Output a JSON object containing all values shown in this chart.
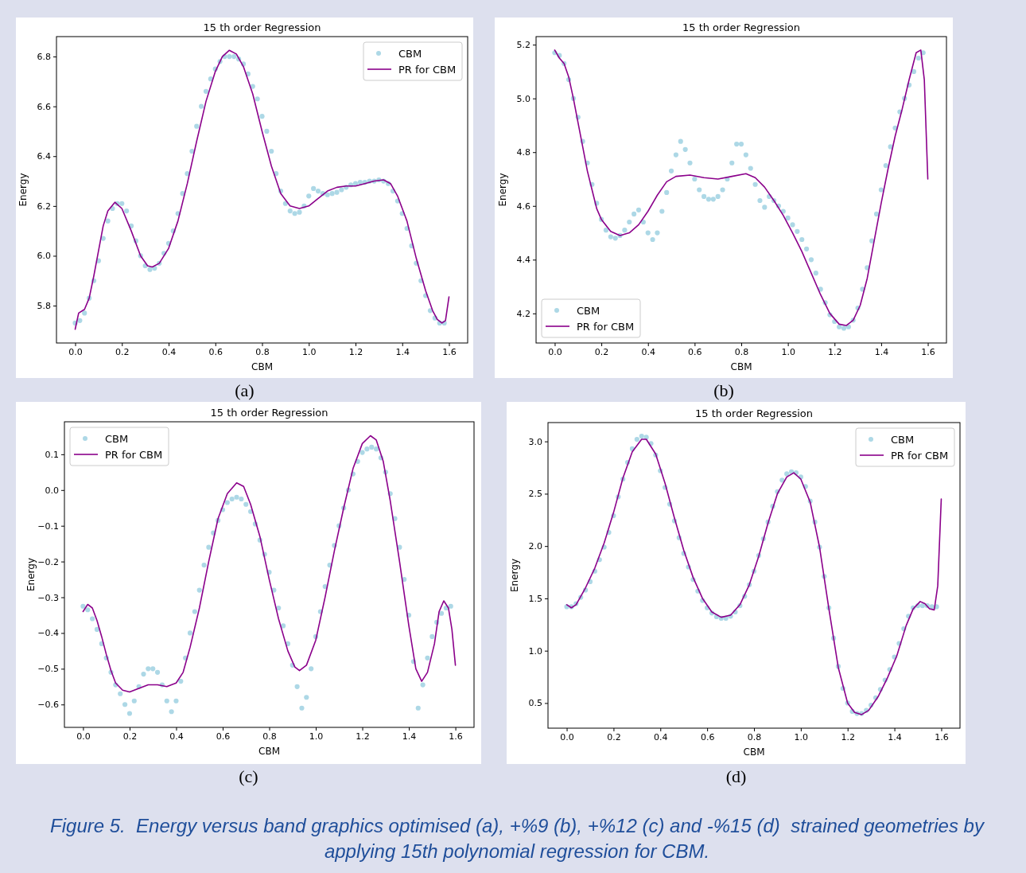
{
  "chart_data": [
    {
      "type": "line",
      "title": "15 th order Regression",
      "xlabel": "CBM",
      "ylabel": "Energy",
      "annotations": [
        "(a)",
        "Figure 5.  Energy versus band graphics optimised (a), +%9 (b), +%12 (c) and -%15 (d)  strained geometries by applying 15th polynomial regression for CBM."
      ],
      "legend": "top right",
      "grid": false,
      "xlim": [
        -0.08,
        1.68
      ],
      "xticks": [
        {
          "value": 0,
          "label": "0.0"
        },
        {
          "value": 0.2,
          "label": "0.2"
        },
        {
          "value": 0.4,
          "label": "0.4"
        },
        {
          "value": 0.6,
          "label": "0.6"
        },
        {
          "value": 0.8,
          "label": "0.8"
        },
        {
          "value": 1,
          "label": "1.0"
        },
        {
          "value": 1.2,
          "label": "1.2"
        },
        {
          "value": 1.4,
          "label": "1.4"
        },
        {
          "value": 1.6,
          "label": "1.6"
        }
      ],
      "ylim": [
        5.65,
        6.88
      ],
      "yticks": [
        5.8,
        {
          "value": 6,
          "label": "6.0"
        },
        6.2,
        6.4,
        6.6,
        6.8
      ],
      "series": [
        {
          "name": "CBM",
          "type": "scatter",
          "marker": "circle",
          "color": "#add8e6",
          "x": [
            0,
            0.02,
            0.04,
            0.06,
            0.08,
            0.1,
            0.12,
            0.14,
            0.16,
            0.18,
            0.2,
            0.22,
            0.24,
            0.26,
            0.28,
            0.3,
            0.32,
            0.34,
            0.36,
            0.38,
            0.4,
            0.42,
            0.44,
            0.46,
            0.48,
            0.5,
            0.52,
            0.54,
            0.56,
            0.58,
            0.6,
            0.62,
            0.64,
            0.66,
            0.68,
            0.7,
            0.72,
            0.74,
            0.76,
            0.78,
            0.8,
            0.82,
            0.84,
            0.86,
            0.88,
            0.9,
            0.92,
            0.94,
            0.96,
            0.98,
            1,
            1.02,
            1.04,
            1.06,
            1.08,
            1.1,
            1.12,
            1.14,
            1.16,
            1.18,
            1.2,
            1.22,
            1.24,
            1.26,
            1.28,
            1.3,
            1.32,
            1.34,
            1.36,
            1.38,
            1.4,
            1.42,
            1.44,
            1.46,
            1.48,
            1.5,
            1.52,
            1.54,
            1.56,
            1.58
          ],
          "values": [
            5.73,
            5.74,
            5.77,
            5.83,
            5.9,
            5.98,
            6.07,
            6.14,
            6.19,
            6.21,
            6.21,
            6.18,
            6.12,
            6.06,
            6,
            5.96,
            5.945,
            5.95,
            5.97,
            6.01,
            6.05,
            6.1,
            6.17,
            6.25,
            6.33,
            6.42,
            6.52,
            6.6,
            6.66,
            6.71,
            6.75,
            6.78,
            6.8,
            6.8,
            6.8,
            6.79,
            6.77,
            6.73,
            6.68,
            6.63,
            6.56,
            6.5,
            6.42,
            6.33,
            6.26,
            6.21,
            6.18,
            6.17,
            6.175,
            6.2,
            6.24,
            6.27,
            6.26,
            6.25,
            6.245,
            6.25,
            6.255,
            6.265,
            6.275,
            6.285,
            6.29,
            6.295,
            6.295,
            6.3,
            6.3,
            6.305,
            6.3,
            6.29,
            6.26,
            6.22,
            6.17,
            6.11,
            6.04,
            5.97,
            5.9,
            5.84,
            5.78,
            5.75,
            5.73,
            5.73
          ]
        },
        {
          "name": "PR for CBM",
          "type": "line",
          "color": "#8b008b",
          "x": [
            0,
            0.015,
            0.04,
            0.06,
            0.08,
            0.1,
            0.12,
            0.14,
            0.17,
            0.2,
            0.24,
            0.28,
            0.31,
            0.33,
            0.36,
            0.4,
            0.44,
            0.48,
            0.52,
            0.56,
            0.6,
            0.63,
            0.66,
            0.69,
            0.72,
            0.76,
            0.8,
            0.84,
            0.88,
            0.92,
            0.96,
            1,
            1.04,
            1.08,
            1.12,
            1.16,
            1.2,
            1.24,
            1.28,
            1.32,
            1.35,
            1.38,
            1.42,
            1.46,
            1.5,
            1.53,
            1.55,
            1.57,
            1.585,
            1.6
          ],
          "values": [
            5.705,
            5.77,
            5.785,
            5.83,
            5.92,
            6.02,
            6.12,
            6.18,
            6.215,
            6.19,
            6.1,
            6,
            5.96,
            5.955,
            5.97,
            6.03,
            6.14,
            6.29,
            6.46,
            6.62,
            6.74,
            6.8,
            6.825,
            6.81,
            6.76,
            6.65,
            6.5,
            6.36,
            6.25,
            6.2,
            6.19,
            6.2,
            6.23,
            6.26,
            6.275,
            6.28,
            6.28,
            6.29,
            6.3,
            6.305,
            6.29,
            6.24,
            6.14,
            5.99,
            5.86,
            5.78,
            5.745,
            5.73,
            5.74,
            5.835
          ]
        }
      ]
    },
    {
      "type": "line",
      "title": "15 th order Regression",
      "xlabel": "CBM",
      "ylabel": "Energy",
      "annotations": [
        "(b)"
      ],
      "legend": "bottom left",
      "grid": false,
      "xlim": [
        -0.08,
        1.68
      ],
      "xticks": [
        {
          "value": 0,
          "label": "0.0"
        },
        {
          "value": 0.2,
          "label": "0.2"
        },
        {
          "value": 0.4,
          "label": "0.4"
        },
        {
          "value": 0.6,
          "label": "0.6"
        },
        {
          "value": 0.8,
          "label": "0.8"
        },
        {
          "value": 1,
          "label": "1.0"
        },
        {
          "value": 1.2,
          "label": "1.2"
        },
        {
          "value": 1.4,
          "label": "1.4"
        },
        {
          "value": 1.6,
          "label": "1.6"
        }
      ],
      "ylim": [
        4.09,
        5.23
      ],
      "yticks": [
        4.2,
        4.4,
        4.6,
        4.8,
        {
          "value": 5,
          "label": "5.0"
        },
        5.2
      ],
      "series": [
        {
          "name": "CBM",
          "type": "scatter",
          "marker": "circle",
          "color": "#add8e6",
          "x": [
            0,
            0.02,
            0.04,
            0.06,
            0.08,
            0.1,
            0.12,
            0.14,
            0.16,
            0.18,
            0.2,
            0.22,
            0.24,
            0.26,
            0.28,
            0.3,
            0.32,
            0.34,
            0.36,
            0.38,
            0.4,
            0.42,
            0.44,
            0.46,
            0.48,
            0.5,
            0.52,
            0.54,
            0.56,
            0.58,
            0.6,
            0.62,
            0.64,
            0.66,
            0.68,
            0.7,
            0.72,
            0.74,
            0.76,
            0.78,
            0.8,
            0.82,
            0.84,
            0.86,
            0.88,
            0.9,
            0.92,
            0.94,
            0.96,
            0.98,
            1,
            1.02,
            1.04,
            1.06,
            1.08,
            1.1,
            1.12,
            1.14,
            1.16,
            1.18,
            1.2,
            1.22,
            1.24,
            1.26,
            1.28,
            1.3,
            1.32,
            1.34,
            1.36,
            1.38,
            1.4,
            1.42,
            1.44,
            1.46,
            1.48,
            1.5,
            1.52,
            1.54,
            1.56,
            1.58
          ],
          "values": [
            5.17,
            5.16,
            5.13,
            5.07,
            5,
            4.93,
            4.84,
            4.76,
            4.68,
            4.61,
            4.55,
            4.51,
            4.485,
            4.48,
            4.49,
            4.51,
            4.54,
            4.57,
            4.585,
            4.54,
            4.5,
            4.475,
            4.5,
            4.58,
            4.65,
            4.73,
            4.79,
            4.84,
            4.81,
            4.76,
            4.7,
            4.66,
            4.635,
            4.625,
            4.625,
            4.635,
            4.66,
            4.7,
            4.76,
            4.83,
            4.83,
            4.79,
            4.74,
            4.68,
            4.62,
            4.595,
            4.635,
            4.62,
            4.6,
            4.58,
            4.555,
            4.53,
            4.505,
            4.475,
            4.44,
            4.4,
            4.35,
            4.29,
            4.24,
            4.195,
            4.17,
            4.15,
            4.145,
            4.15,
            4.175,
            4.22,
            4.29,
            4.37,
            4.47,
            4.57,
            4.66,
            4.75,
            4.82,
            4.89,
            4.95,
            5,
            5.05,
            5.1,
            5.15,
            5.17
          ]
        },
        {
          "name": "PR for CBM",
          "type": "line",
          "color": "#8b008b",
          "x": [
            0,
            0.02,
            0.04,
            0.06,
            0.08,
            0.1,
            0.12,
            0.14,
            0.16,
            0.18,
            0.2,
            0.24,
            0.28,
            0.32,
            0.36,
            0.4,
            0.44,
            0.48,
            0.52,
            0.58,
            0.64,
            0.7,
            0.76,
            0.82,
            0.86,
            0.9,
            0.94,
            0.98,
            1.02,
            1.06,
            1.1,
            1.14,
            1.18,
            1.22,
            1.25,
            1.28,
            1.31,
            1.34,
            1.37,
            1.4,
            1.43,
            1.46,
            1.49,
            1.52,
            1.55,
            1.57,
            1.585,
            1.6
          ],
          "values": [
            5.18,
            5.15,
            5.13,
            5.08,
            5,
            4.91,
            4.82,
            4.73,
            4.66,
            4.59,
            4.55,
            4.505,
            4.49,
            4.5,
            4.53,
            4.58,
            4.64,
            4.69,
            4.71,
            4.715,
            4.705,
            4.7,
            4.71,
            4.72,
            4.705,
            4.67,
            4.62,
            4.565,
            4.5,
            4.43,
            4.35,
            4.27,
            4.2,
            4.16,
            4.155,
            4.175,
            4.23,
            4.33,
            4.47,
            4.61,
            4.74,
            4.86,
            4.96,
            5.07,
            5.17,
            5.18,
            5.07,
            4.7
          ]
        }
      ]
    },
    {
      "type": "line",
      "title": "15 th order Regression",
      "xlabel": "CBM",
      "ylabel": "Energy",
      "annotations": [
        "(c)"
      ],
      "legend": "top left",
      "grid": false,
      "xlim": [
        -0.08,
        1.68
      ],
      "xticks": [
        {
          "value": 0,
          "label": "0.0"
        },
        {
          "value": 0.2,
          "label": "0.2"
        },
        {
          "value": 0.4,
          "label": "0.4"
        },
        {
          "value": 0.6,
          "label": "0.6"
        },
        {
          "value": 0.8,
          "label": "0.8"
        },
        {
          "value": 1,
          "label": "1.0"
        },
        {
          "value": 1.2,
          "label": "1.2"
        },
        {
          "value": 1.4,
          "label": "1.4"
        },
        {
          "value": 1.6,
          "label": "1.6"
        }
      ],
      "ylim": [
        -0.664,
        0.191
      ],
      "yticks": [
        {
          "value": -0.6,
          "label": "−0.6"
        },
        {
          "value": -0.5,
          "label": "−0.5"
        },
        {
          "value": -0.4,
          "label": "−0.4"
        },
        {
          "value": -0.3,
          "label": "−0.3"
        },
        {
          "value": -0.2,
          "label": "−0.2"
        },
        {
          "value": -0.1,
          "label": "−0.1"
        },
        {
          "value": 0,
          "label": "0.0"
        },
        0.1
      ],
      "series": [
        {
          "name": "CBM",
          "type": "scatter",
          "marker": "circle",
          "color": "#add8e6",
          "x": [
            0,
            0.02,
            0.04,
            0.06,
            0.08,
            0.1,
            0.12,
            0.14,
            0.16,
            0.18,
            0.2,
            0.22,
            0.24,
            0.26,
            0.28,
            0.3,
            0.32,
            0.34,
            0.36,
            0.38,
            0.4,
            0.42,
            0.44,
            0.46,
            0.48,
            0.5,
            0.52,
            0.54,
            0.56,
            0.58,
            0.6,
            0.62,
            0.64,
            0.66,
            0.68,
            0.7,
            0.72,
            0.74,
            0.76,
            0.78,
            0.8,
            0.82,
            0.84,
            0.86,
            0.88,
            0.9,
            0.92,
            0.94,
            0.96,
            0.98,
            1,
            1.02,
            1.04,
            1.06,
            1.08,
            1.1,
            1.12,
            1.14,
            1.16,
            1.18,
            1.2,
            1.22,
            1.24,
            1.26,
            1.28,
            1.3,
            1.32,
            1.34,
            1.36,
            1.38,
            1.4,
            1.42,
            1.44,
            1.46,
            1.48,
            1.5,
            1.52,
            1.54,
            1.56,
            1.58
          ],
          "values": [
            -0.325,
            -0.335,
            -0.36,
            -0.39,
            -0.43,
            -0.47,
            -0.51,
            -0.545,
            -0.57,
            -0.6,
            -0.625,
            -0.59,
            -0.55,
            -0.515,
            -0.5,
            -0.5,
            -0.51,
            -0.545,
            -0.59,
            -0.62,
            -0.59,
            -0.535,
            -0.47,
            -0.4,
            -0.34,
            -0.28,
            -0.21,
            -0.16,
            -0.12,
            -0.085,
            -0.055,
            -0.035,
            -0.025,
            -0.02,
            -0.025,
            -0.04,
            -0.06,
            -0.095,
            -0.14,
            -0.18,
            -0.23,
            -0.28,
            -0.33,
            -0.38,
            -0.43,
            -0.49,
            -0.55,
            -0.61,
            -0.58,
            -0.5,
            -0.41,
            -0.34,
            -0.27,
            -0.21,
            -0.155,
            -0.1,
            -0.05,
            0,
            0.045,
            0.08,
            0.105,
            0.115,
            0.12,
            0.115,
            0.09,
            0.05,
            -0.01,
            -0.08,
            -0.16,
            -0.25,
            -0.35,
            -0.48,
            -0.61,
            -0.545,
            -0.47,
            -0.41,
            -0.37,
            -0.345,
            -0.33,
            -0.325
          ]
        },
        {
          "name": "PR for CBM",
          "type": "line",
          "color": "#8b008b",
          "x": [
            0,
            0.02,
            0.04,
            0.06,
            0.08,
            0.1,
            0.12,
            0.14,
            0.17,
            0.2,
            0.24,
            0.28,
            0.32,
            0.36,
            0.4,
            0.43,
            0.46,
            0.5,
            0.54,
            0.58,
            0.62,
            0.66,
            0.69,
            0.72,
            0.76,
            0.8,
            0.84,
            0.88,
            0.91,
            0.93,
            0.96,
            1,
            1.04,
            1.08,
            1.12,
            1.16,
            1.2,
            1.235,
            1.26,
            1.29,
            1.32,
            1.36,
            1.4,
            1.43,
            1.455,
            1.48,
            1.51,
            1.53,
            1.55,
            1.57,
            1.585,
            1.6
          ],
          "values": [
            -0.34,
            -0.32,
            -0.33,
            -0.365,
            -0.41,
            -0.46,
            -0.505,
            -0.54,
            -0.56,
            -0.565,
            -0.555,
            -0.545,
            -0.545,
            -0.55,
            -0.54,
            -0.51,
            -0.44,
            -0.33,
            -0.2,
            -0.08,
            -0.01,
            0.02,
            0.01,
            -0.04,
            -0.13,
            -0.25,
            -0.36,
            -0.45,
            -0.495,
            -0.505,
            -0.49,
            -0.42,
            -0.3,
            -0.17,
            -0.05,
            0.06,
            0.13,
            0.152,
            0.14,
            0.08,
            -0.03,
            -0.2,
            -0.38,
            -0.5,
            -0.535,
            -0.51,
            -0.43,
            -0.34,
            -0.31,
            -0.33,
            -0.39,
            -0.49
          ]
        }
      ]
    },
    {
      "type": "line",
      "title": "15 th order Regression",
      "xlabel": "CBM",
      "ylabel": "Energy",
      "annotations": [
        "(d)"
      ],
      "legend": "top right",
      "grid": false,
      "xlim": [
        -0.08,
        1.68
      ],
      "xticks": [
        {
          "value": 0,
          "label": "0.0"
        },
        {
          "value": 0.2,
          "label": "0.2"
        },
        {
          "value": 0.4,
          "label": "0.4"
        },
        {
          "value": 0.6,
          "label": "0.6"
        },
        {
          "value": 0.8,
          "label": "0.8"
        },
        {
          "value": 1,
          "label": "1.0"
        },
        {
          "value": 1.2,
          "label": "1.2"
        },
        {
          "value": 1.4,
          "label": "1.4"
        },
        {
          "value": 1.6,
          "label": "1.6"
        }
      ],
      "ylim": [
        0.26,
        3.18
      ],
      "yticks": [
        0.5,
        {
          "value": 1,
          "label": "1.0"
        },
        1.5,
        {
          "value": 2,
          "label": "2.0"
        },
        2.5,
        {
          "value": 3,
          "label": "3.0"
        }
      ],
      "series": [
        {
          "name": "CBM",
          "type": "scatter",
          "marker": "circle",
          "color": "#add8e6",
          "x": [
            0,
            0.02,
            0.04,
            0.06,
            0.08,
            0.1,
            0.12,
            0.14,
            0.16,
            0.18,
            0.2,
            0.22,
            0.24,
            0.26,
            0.28,
            0.3,
            0.32,
            0.34,
            0.36,
            0.38,
            0.4,
            0.42,
            0.44,
            0.46,
            0.48,
            0.5,
            0.52,
            0.54,
            0.56,
            0.58,
            0.6,
            0.62,
            0.64,
            0.66,
            0.68,
            0.7,
            0.72,
            0.74,
            0.76,
            0.78,
            0.8,
            0.82,
            0.84,
            0.86,
            0.88,
            0.9,
            0.92,
            0.94,
            0.96,
            0.98,
            1,
            1.02,
            1.04,
            1.06,
            1.08,
            1.1,
            1.12,
            1.14,
            1.16,
            1.18,
            1.2,
            1.22,
            1.24,
            1.26,
            1.28,
            1.3,
            1.32,
            1.34,
            1.36,
            1.38,
            1.4,
            1.42,
            1.44,
            1.46,
            1.48,
            1.5,
            1.52,
            1.54,
            1.56,
            1.58
          ],
          "values": [
            1.42,
            1.42,
            1.45,
            1.51,
            1.58,
            1.66,
            1.76,
            1.87,
            1.99,
            2.13,
            2.29,
            2.47,
            2.64,
            2.8,
            2.93,
            3.02,
            3.05,
            3.04,
            2.98,
            2.87,
            2.72,
            2.56,
            2.4,
            2.24,
            2.08,
            1.93,
            1.8,
            1.68,
            1.57,
            1.48,
            1.41,
            1.36,
            1.325,
            1.31,
            1.31,
            1.33,
            1.37,
            1.43,
            1.52,
            1.63,
            1.76,
            1.91,
            2.07,
            2.23,
            2.38,
            2.52,
            2.63,
            2.69,
            2.71,
            2.7,
            2.66,
            2.57,
            2.43,
            2.23,
            1.99,
            1.71,
            1.41,
            1.12,
            0.85,
            0.64,
            0.5,
            0.42,
            0.4,
            0.4,
            0.43,
            0.48,
            0.55,
            0.63,
            0.72,
            0.82,
            0.94,
            1.07,
            1.21,
            1.33,
            1.41,
            1.43,
            1.43,
            1.43,
            1.42,
            1.42
          ]
        },
        {
          "name": "PR for CBM",
          "type": "line",
          "color": "#8b008b",
          "x": [
            0,
            0.02,
            0.04,
            0.08,
            0.12,
            0.16,
            0.2,
            0.24,
            0.28,
            0.32,
            0.34,
            0.38,
            0.42,
            0.46,
            0.5,
            0.54,
            0.58,
            0.62,
            0.66,
            0.7,
            0.74,
            0.78,
            0.82,
            0.86,
            0.9,
            0.94,
            0.97,
            1,
            1.04,
            1.08,
            1.12,
            1.16,
            1.2,
            1.23,
            1.26,
            1.29,
            1.33,
            1.37,
            1.41,
            1.45,
            1.48,
            1.51,
            1.53,
            1.55,
            1.57,
            1.585,
            1.6
          ],
          "values": [
            1.44,
            1.41,
            1.44,
            1.6,
            1.79,
            2.03,
            2.32,
            2.65,
            2.9,
            3.02,
            3.02,
            2.88,
            2.6,
            2.27,
            1.96,
            1.7,
            1.5,
            1.37,
            1.32,
            1.34,
            1.44,
            1.63,
            1.9,
            2.22,
            2.5,
            2.66,
            2.7,
            2.64,
            2.42,
            1.99,
            1.4,
            0.84,
            0.5,
            0.41,
            0.39,
            0.43,
            0.56,
            0.74,
            0.95,
            1.24,
            1.4,
            1.47,
            1.45,
            1.4,
            1.39,
            1.62,
            2.45
          ]
        }
      ]
    }
  ]
}
